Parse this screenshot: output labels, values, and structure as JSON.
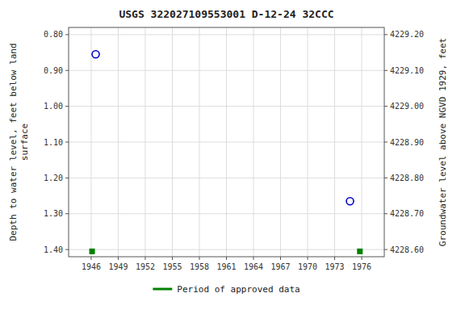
{
  "chart_data": {
    "type": "scatter",
    "title": "USGS 322027109553001 D-12-24 32CCC",
    "ylabel": "Depth to water level, feet below land\nsurface",
    "y2label": "Groundwater level above NGVD 1929, feet",
    "xlim": [
      1943.5,
      1978.5
    ],
    "ylim": [
      1.42,
      0.78
    ],
    "y2lim": [
      4228.58,
      4229.22
    ],
    "xticks": [
      1946,
      1949,
      1952,
      1955,
      1958,
      1961,
      1964,
      1967,
      1970,
      1973,
      1976
    ],
    "yticks": [
      {
        "value": 0.8,
        "label": "0.80"
      },
      {
        "value": 0.9,
        "label": "0.90"
      },
      {
        "value": 1.0,
        "label": "1.00"
      },
      {
        "value": 1.1,
        "label": "1.10"
      },
      {
        "value": 1.2,
        "label": "1.20"
      },
      {
        "value": 1.3,
        "label": "1.30"
      },
      {
        "value": 1.4,
        "label": "1.40"
      }
    ],
    "y2ticks": [
      {
        "value": 4228.6,
        "label": "4228.60"
      },
      {
        "value": 4228.7,
        "label": "4228.70"
      },
      {
        "value": 4228.8,
        "label": "4228.80"
      },
      {
        "value": 4228.9,
        "label": "4228.90"
      },
      {
        "value": 4229.0,
        "label": "4229.00"
      },
      {
        "value": 4229.1,
        "label": "4229.10"
      },
      {
        "value": 4229.2,
        "label": "4229.20"
      }
    ],
    "grid": true,
    "legend": "bottom",
    "series": [
      {
        "x": [
          1946.5,
          1974.7
        ],
        "values": [
          0.855,
          1.265
        ],
        "color": "#0000cc",
        "marker": "open-circle"
      },
      {
        "name": "Period of approved data",
        "x": [
          1946.1,
          1975.8
        ],
        "values": [
          1.405,
          1.405
        ],
        "color": "#008000",
        "marker": "square"
      }
    ]
  }
}
